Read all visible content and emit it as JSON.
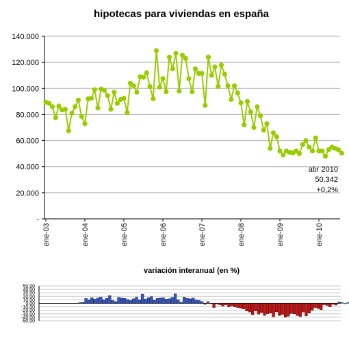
{
  "chart_data": [
    {
      "type": "line",
      "title": "hipotecas para viviendas en españa",
      "ylim": [
        0,
        140000
      ],
      "yticks": [
        "-",
        "20.000",
        "40.000",
        "60.000",
        "80.000",
        "100.000",
        "120.000",
        "140.000"
      ],
      "xticks": [
        "ene-03",
        "ene-04",
        "ene-05",
        "ene-06",
        "ene-07",
        "ene-08",
        "ene-09",
        "ene-10"
      ],
      "grid": "horizontal",
      "color": "#99cc00",
      "series": [
        {
          "x_start": "2003-01",
          "values": [
            89500,
            88500,
            86000,
            77500,
            86500,
            83500,
            84000,
            67500,
            81000,
            86000,
            91000,
            78500,
            73000,
            92000,
            92500,
            99000,
            85000,
            99500,
            98500,
            94500,
            84000,
            97000,
            88500,
            91500,
            92500,
            81500,
            104000,
            102000,
            97000,
            109000,
            108500,
            112000,
            101500,
            92000,
            129000,
            101000,
            107500,
            97500,
            124000,
            115000,
            127000,
            98000,
            125500,
            123000,
            107500,
            97500,
            115000,
            111500,
            111500,
            87000,
            124000,
            110000,
            116500,
            101500,
            118000,
            111000,
            102000,
            91500,
            102000,
            96500,
            89000,
            72000,
            90000,
            82000,
            70000,
            86000,
            79000,
            68000,
            73000,
            54000,
            66000,
            63000,
            52000,
            49000,
            52000,
            51000,
            50500,
            52000,
            50000,
            57000,
            60000,
            55000,
            52000,
            62000,
            52000,
            52000,
            48000,
            53000,
            55000,
            54000,
            53000,
            50342
          ]
        }
      ],
      "annotation": {
        "lines": [
          "abr 2010",
          "50.342",
          "+0,2%"
        ]
      }
    },
    {
      "type": "bar",
      "title": "variación interanual (en %)",
      "ylim": [
        -50,
        50
      ],
      "yticks": [
        "50,00",
        "40,00",
        "30,00",
        "20,00",
        "10,00",
        "0,00",
        "-10,00",
        "-20,00",
        "-30,00",
        "-40,00",
        "-50,00"
      ],
      "x_start": "2003-01",
      "positive_color": "#3355cc",
      "negative_color": "#cc1111",
      "values": [
        2,
        3,
        14,
        10,
        16,
        12,
        15,
        18,
        10,
        14,
        22,
        8,
        5,
        17,
        15,
        14,
        11,
        8,
        13,
        18,
        10,
        26,
        12,
        16,
        19,
        9,
        14,
        15,
        16,
        12,
        13,
        17,
        27,
        10,
        3,
        18,
        14,
        13,
        15,
        10,
        8,
        5,
        -3,
        5,
        -1,
        -12,
        -2,
        -4,
        -8,
        -4,
        -10,
        -7,
        -10,
        -12,
        -14,
        -16,
        -22,
        -25,
        -33,
        -22,
        -31,
        -27,
        -35,
        -30,
        -28,
        -39,
        -24,
        -35,
        -32,
        -40,
        -37,
        -29,
        -30,
        -35,
        -38,
        -25,
        -36,
        -28,
        -20,
        -12,
        -15,
        -18,
        -4,
        -6,
        -10,
        -3,
        -5,
        4,
        2,
        0,
        2
      ]
    }
  ]
}
